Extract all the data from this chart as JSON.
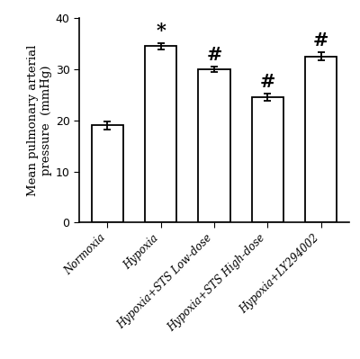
{
  "categories": [
    "Normoxia",
    "Hypoxia",
    "Hypoxia+STS Low-dose",
    "Hypoxia+STS High-dose",
    "Hypoxia+LY294002"
  ],
  "values": [
    19.0,
    34.5,
    30.0,
    24.5,
    32.5
  ],
  "errors": [
    0.8,
    0.6,
    0.5,
    0.7,
    0.8
  ],
  "bar_color": "#ffffff",
  "bar_edgecolor": "#000000",
  "bar_width": 0.6,
  "ylabel_line1": "Mean pulmonary arterial",
  "ylabel_line2": "pressure  (mmHg)",
  "ylim": [
    0,
    40
  ],
  "yticks": [
    0,
    10,
    20,
    30,
    40
  ],
  "significance": [
    "",
    "*",
    "#",
    "#",
    "#"
  ],
  "sig_fontsize": 15,
  "bar_linewidth": 1.3,
  "capsize": 3,
  "tick_label_fontsize": 8.5,
  "ylabel_fontsize": 9.5,
  "background_color": "#ffffff",
  "figure_width": 4.0,
  "figure_height": 3.99,
  "dpi": 100
}
